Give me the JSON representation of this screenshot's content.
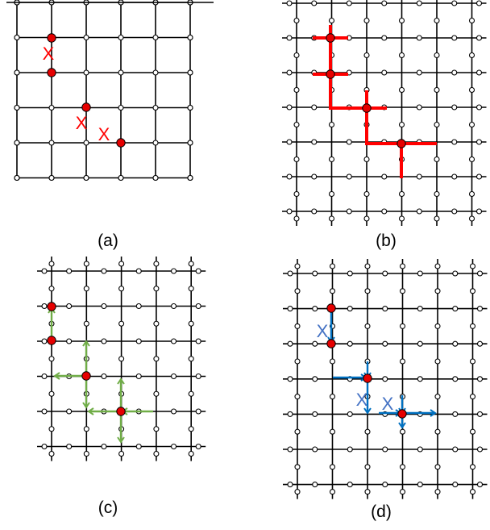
{
  "colors": {
    "grid": "#000000",
    "node_fill": "#ffffff",
    "defect": "#e60000",
    "path_red": "#ff0000",
    "arrow_green": "#70ad47",
    "arrow_blue": "#0070c0",
    "x_blue": "#4472c4"
  },
  "panels": [
    {
      "id": "a",
      "caption": "(a)",
      "mark": "X"
    },
    {
      "id": "b",
      "caption": "(b)"
    },
    {
      "id": "c",
      "caption": "(c)"
    },
    {
      "id": "d",
      "caption": "(d)",
      "mark": "X"
    }
  ]
}
